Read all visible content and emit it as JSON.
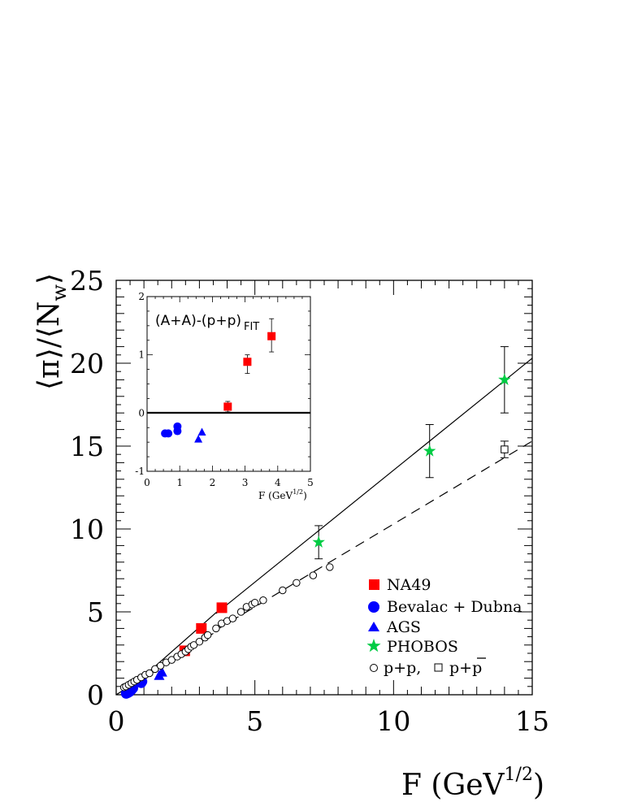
{
  "chart_data": [
    {
      "type": "scatter",
      "xlabel_base": "F (GeV",
      "xlabel_exp": "1/2",
      "xlabel_close": ")",
      "ylabel_parts": [
        "⟨π⟩/⟨N",
        "w",
        "⟩"
      ],
      "xlim": [
        0,
        15
      ],
      "ylim": [
        0,
        25
      ],
      "xticks": [
        0,
        5,
        10,
        15
      ],
      "yticks": [
        0,
        5,
        10,
        15,
        20,
        25
      ],
      "series": [
        {
          "name": "NA49",
          "marker": "square",
          "color": "#ff0000",
          "x": [
            2.47,
            3.07,
            3.81
          ],
          "y": [
            2.65,
            4.0,
            5.25
          ]
        },
        {
          "name": "Bevalac + Dubna",
          "marker": "circle",
          "color": "#0000ff",
          "x": [
            0.36,
            0.42,
            0.48,
            0.55,
            0.6,
            0.9,
            0.93
          ],
          "y": [
            0.08,
            0.12,
            0.18,
            0.3,
            0.4,
            0.72,
            0.8
          ]
        },
        {
          "name": "AGS",
          "marker": "triangle",
          "color": "#0000ff",
          "x": [
            1.55,
            1.65
          ],
          "y": [
            1.15,
            1.35
          ]
        },
        {
          "name": "PHOBOS",
          "marker": "star",
          "color": "#00cc44",
          "x": [
            7.3,
            11.3,
            14.0
          ],
          "y": [
            9.2,
            14.7,
            19.0
          ],
          "yerr": [
            1.0,
            1.6,
            2.0
          ]
        },
        {
          "name": "p+p,",
          "marker": "open-circle",
          "color": "#000000",
          "x": [
            0.28,
            0.35,
            0.45,
            0.55,
            0.65,
            0.75,
            0.9,
            1.05,
            1.2,
            1.4,
            1.6,
            1.8,
            2.0,
            2.2,
            2.35,
            2.5,
            2.6,
            2.7,
            2.8,
            3.0,
            3.2,
            3.3,
            3.6,
            3.8,
            4.0,
            4.2,
            4.5,
            4.7,
            4.9,
            5.0,
            5.3,
            6.0,
            6.5,
            7.1,
            7.7
          ],
          "y": [
            0.45,
            0.5,
            0.6,
            0.7,
            0.8,
            0.9,
            1.05,
            1.2,
            1.3,
            1.55,
            1.75,
            1.95,
            2.1,
            2.3,
            2.45,
            2.6,
            2.75,
            2.9,
            3.0,
            3.2,
            3.45,
            3.6,
            4.0,
            4.3,
            4.45,
            4.6,
            5.0,
            5.3,
            5.45,
            5.55,
            5.7,
            6.3,
            6.75,
            7.2,
            7.7
          ]
        },
        {
          "name": "p+p̄",
          "marker": "open-square",
          "color": "#000000",
          "x": [
            14.0
          ],
          "y": [
            14.8
          ],
          "yerr": [
            0.5
          ]
        }
      ],
      "fits": [
        {
          "style": "solid",
          "x": [
            3.6,
            15.0
          ],
          "y": [
            4.9,
            20.3
          ]
        },
        {
          "style": "dashed",
          "x": [
            3.1,
            15.0
          ],
          "y": [
            3.4,
            15.3
          ]
        },
        {
          "style": "solid",
          "x": [
            0.0,
            3.7
          ],
          "y": [
            -0.35,
            5.1
          ]
        },
        {
          "style": "solid",
          "x": [
            0.0,
            3.5
          ],
          "y": [
            0.0,
            3.7
          ]
        }
      ],
      "legend": {
        "placement": "bottom-right",
        "entries": [
          "NA49",
          "Bevalac + Dubna",
          "AGS",
          "PHOBOS"
        ],
        "last_row": [
          "p+p,",
          "p+p"
        ]
      }
    },
    {
      "type": "scatter",
      "title_main": "(A+A)-(p+p)",
      "title_sub": "FIT",
      "xlabel_base": "F (GeV",
      "xlabel_exp": "1/2",
      "xlabel_close": ")",
      "xlim": [
        0,
        5
      ],
      "ylim": [
        -1,
        2
      ],
      "xticks": [
        0,
        1,
        2,
        3,
        4,
        5
      ],
      "yticks": [
        -1,
        0,
        1,
        2
      ],
      "zero_line": true,
      "series": [
        {
          "name": "NA49",
          "marker": "square",
          "color": "#ff0000",
          "x": [
            2.47,
            3.07,
            3.81
          ],
          "y": [
            0.11,
            0.88,
            1.32
          ],
          "ylo": [
            0.02,
            0.68,
            1.05
          ],
          "yhi": [
            0.2,
            1.0,
            1.62
          ]
        },
        {
          "name": "Bevalac + Dubna",
          "marker": "circle",
          "color": "#0000ff",
          "x": [
            0.55,
            0.65,
            0.93,
            0.93
          ],
          "y": [
            -0.35,
            -0.35,
            -0.31,
            -0.23
          ]
        },
        {
          "name": "AGS",
          "marker": "triangle",
          "color": "#0000ff",
          "x": [
            1.57,
            1.68
          ],
          "y": [
            -0.45,
            -0.33
          ]
        }
      ]
    }
  ]
}
